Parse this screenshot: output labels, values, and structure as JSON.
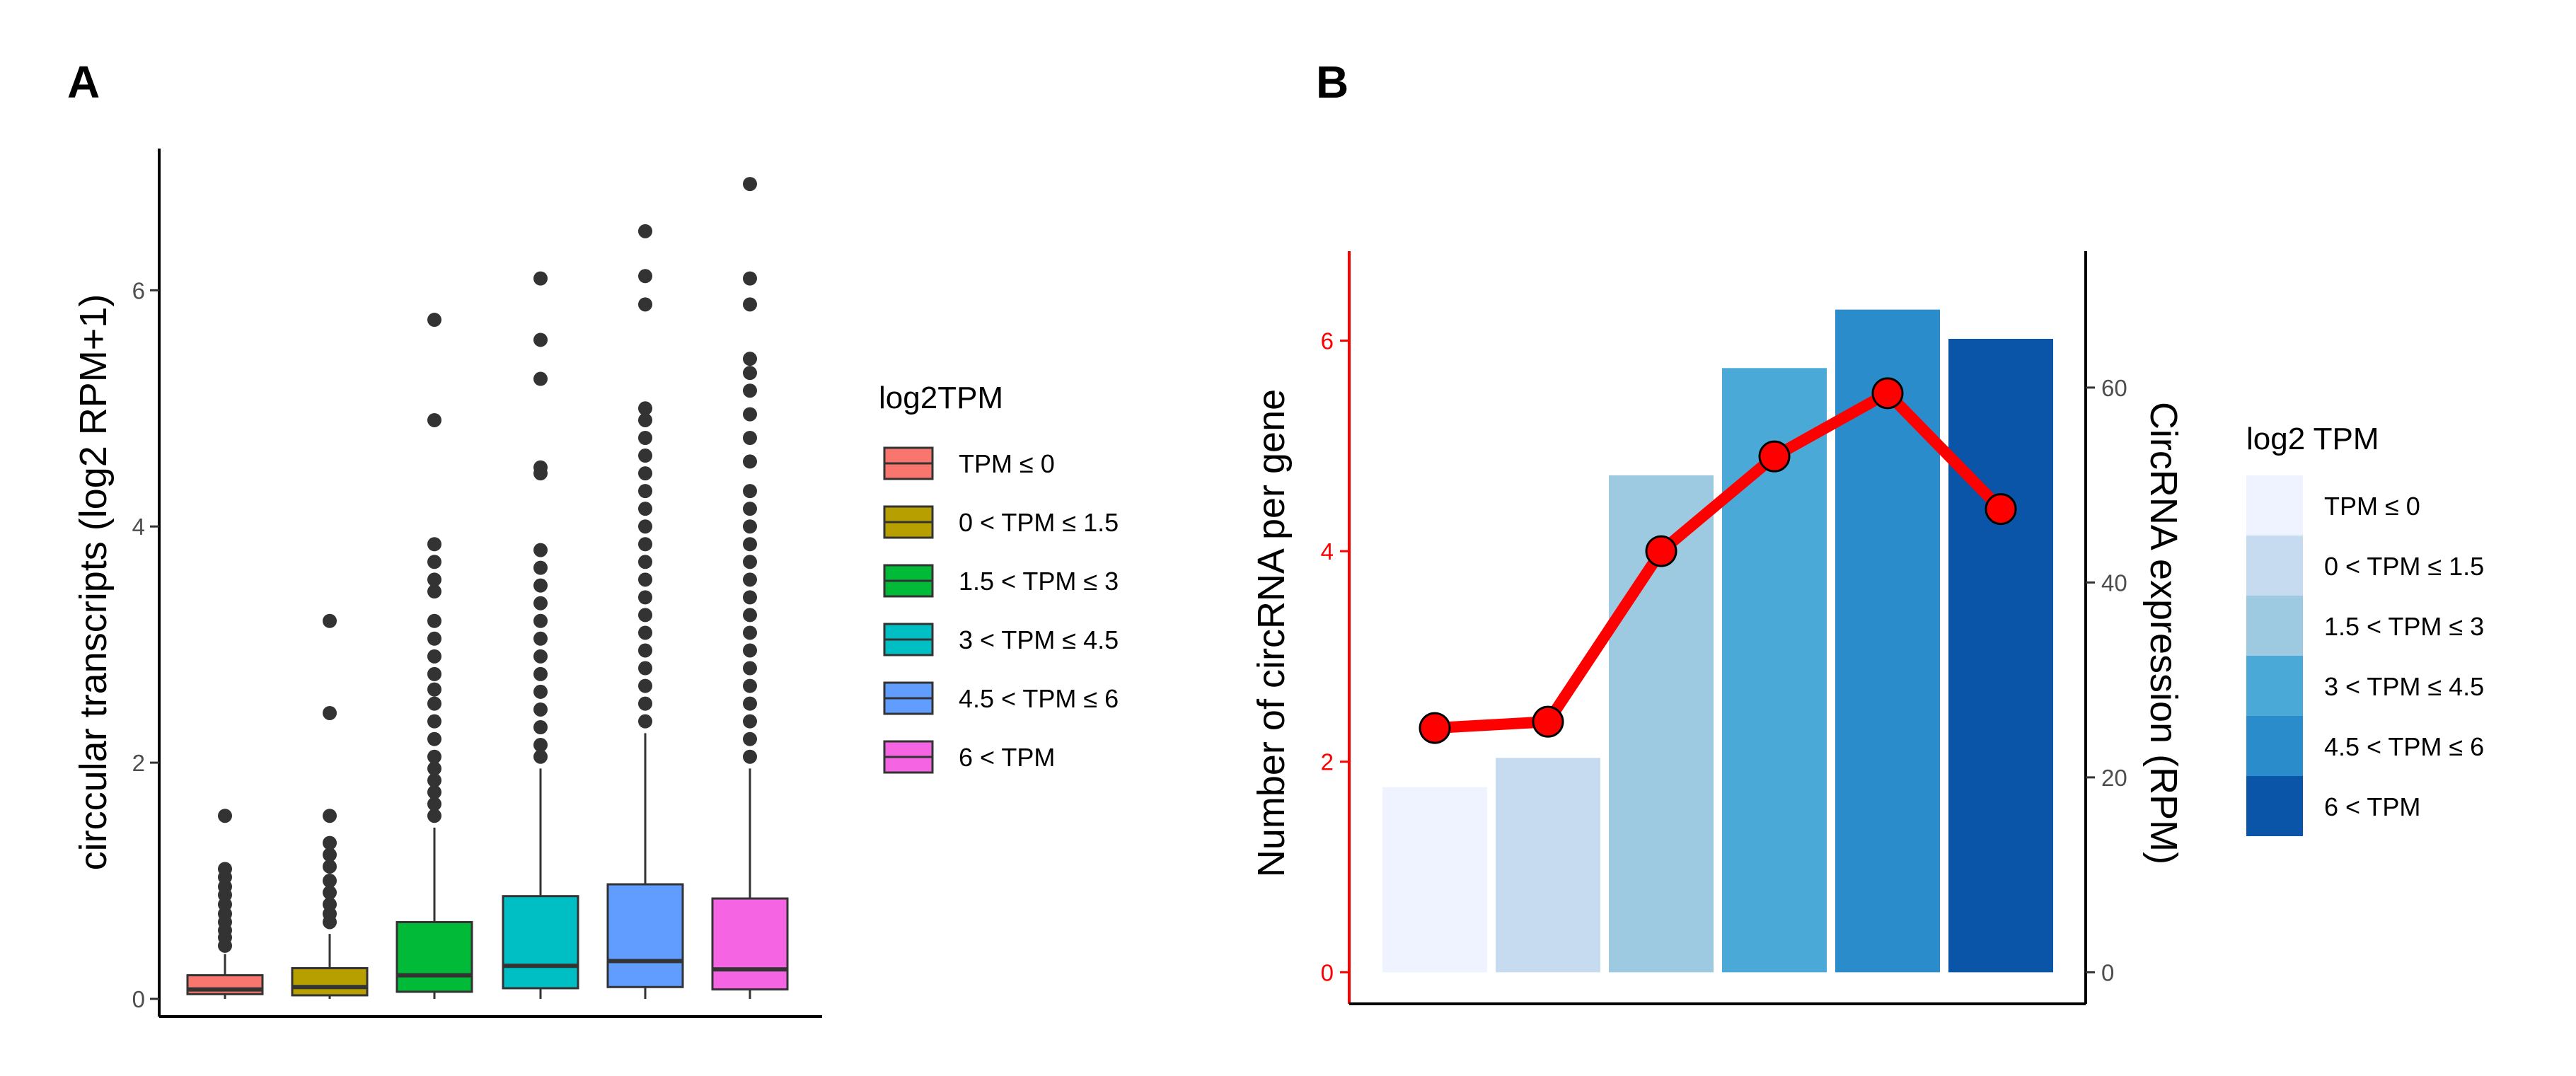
{
  "panels": {
    "a_label": "A",
    "b_label": "B"
  },
  "chart_data": [
    {
      "type": "box",
      "panel": "A",
      "ylabel": "circcular transcripts (log2 RPM+1)",
      "ylim": [
        -0.15,
        7.2
      ],
      "yticks": [
        0,
        2,
        4,
        6
      ],
      "legend_title": "log2TPM",
      "categories": [
        "TPM ≤ 0",
        "0 < TPM ≤ 1.5",
        "1.5 < TPM ≤ 3",
        "3 < TPM ≤ 4.5",
        "4.5 < TPM ≤ 6",
        "6 < TPM"
      ],
      "colors": [
        "#F8766D",
        "#B79F00",
        "#00BA38",
        "#00BFC4",
        "#619CFF",
        "#F564E3"
      ],
      "boxes": [
        {
          "q1": 0.04,
          "median": 0.08,
          "q3": 0.2,
          "whisker_low": 0.0,
          "whisker_high": 0.38,
          "outliers": [
            0.45,
            0.52,
            0.58,
            0.65,
            0.72,
            0.8,
            0.88,
            0.95,
            1.03,
            1.1,
            1.55
          ]
        },
        {
          "q1": 0.03,
          "median": 0.1,
          "q3": 0.26,
          "whisker_low": 0.0,
          "whisker_high": 0.55,
          "outliers": [
            0.65,
            0.72,
            0.8,
            0.9,
            1.0,
            1.12,
            1.22,
            1.32,
            1.55,
            2.42,
            3.2
          ]
        },
        {
          "q1": 0.06,
          "median": 0.2,
          "q3": 0.65,
          "whisker_low": 0.0,
          "whisker_high": 1.45,
          "outliers": [
            1.55,
            1.65,
            1.75,
            1.85,
            1.95,
            2.05,
            2.2,
            2.35,
            2.5,
            2.62,
            2.75,
            2.9,
            3.05,
            3.2,
            3.45,
            3.55,
            3.7,
            3.85,
            4.9,
            5.75
          ]
        },
        {
          "q1": 0.09,
          "median": 0.28,
          "q3": 0.87,
          "whisker_low": 0.0,
          "whisker_high": 1.95,
          "outliers": [
            2.05,
            2.15,
            2.3,
            2.45,
            2.6,
            2.75,
            2.9,
            3.05,
            3.2,
            3.35,
            3.5,
            3.65,
            3.8,
            4.45,
            4.5,
            5.25,
            5.58,
            6.1
          ]
        },
        {
          "q1": 0.1,
          "median": 0.32,
          "q3": 0.97,
          "whisker_low": 0.0,
          "whisker_high": 2.25,
          "outliers": [
            2.35,
            2.5,
            2.65,
            2.8,
            2.95,
            3.1,
            3.25,
            3.4,
            3.55,
            3.7,
            3.85,
            4.0,
            4.15,
            4.3,
            4.45,
            4.6,
            4.75,
            4.9,
            5.0,
            5.88,
            6.12,
            6.5
          ]
        },
        {
          "q1": 0.08,
          "median": 0.25,
          "q3": 0.85,
          "whisker_low": 0.0,
          "whisker_high": 1.95,
          "outliers": [
            2.05,
            2.2,
            2.35,
            2.5,
            2.65,
            2.8,
            2.95,
            3.1,
            3.25,
            3.4,
            3.55,
            3.7,
            3.85,
            4.0,
            4.15,
            4.3,
            4.55,
            4.75,
            4.95,
            5.15,
            5.3,
            5.42,
            5.88,
            6.1,
            6.9
          ]
        }
      ]
    },
    {
      "type": "bar+line",
      "panel": "B",
      "ylabel_left": "Number of circRNA per gene",
      "ylabel_right": "CircRNA expression (RPM)",
      "ylim_left": [
        -0.3,
        6.85
      ],
      "ylim_right": [
        -3.24,
        74.0
      ],
      "yticks_left": [
        0,
        2,
        4,
        6
      ],
      "yticks_right": [
        0,
        20,
        40,
        60
      ],
      "legend_title": "log2 TPM",
      "categories": [
        "TPM ≤ 0",
        "0 < TPM ≤ 1.5",
        "1.5 < TPM ≤ 3",
        "3 < TPM ≤ 4.5",
        "4.5 < TPM ≤ 6",
        "6 < TPM"
      ],
      "colors": [
        "#EFF3FF",
        "#C6DBEF",
        "#9ECAE1",
        "#4BA9D8",
        "#2B8CCB",
        "#0A55A8"
      ],
      "bar_values_rpm": [
        19,
        22,
        51,
        62,
        68,
        65
      ],
      "line_values_circrna": [
        2.32,
        2.38,
        4.0,
        4.9,
        5.5,
        4.4
      ],
      "line_color": "#FF0000"
    }
  ]
}
